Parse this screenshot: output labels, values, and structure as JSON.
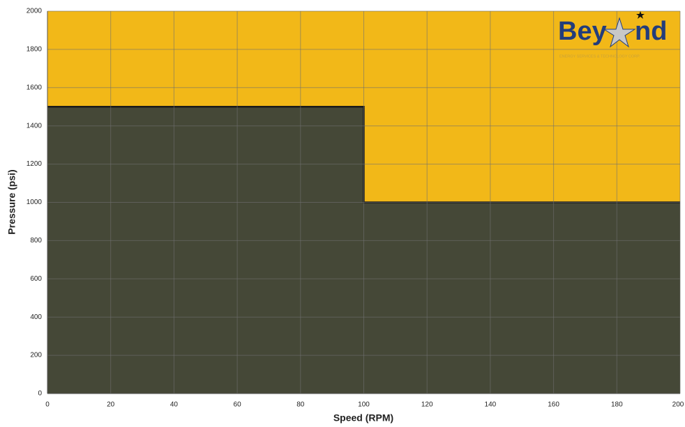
{
  "chart_data": {
    "type": "area",
    "x_label": "Speed (RPM)",
    "y_label": "Pressure (psi)",
    "x": [
      0,
      100,
      100,
      200
    ],
    "values": [
      1500,
      1500,
      1000,
      1000
    ],
    "color": "#454837",
    "line_color": "#1a1a1a",
    "background": "#f2b818",
    "xlim": [
      0,
      200
    ],
    "xticks": [
      0,
      20,
      40,
      60,
      80,
      100,
      120,
      140,
      160,
      180,
      200
    ],
    "ylim": [
      0,
      2000
    ],
    "yticks": [
      0,
      200,
      400,
      600,
      800,
      1000,
      1200,
      1400,
      1600,
      1800,
      2000
    ],
    "grid": true
  },
  "logo": {
    "left": "Bey",
    "right": "nd",
    "tagline": "ENERGY SERVICES & TECHNOLOGY CORP."
  }
}
